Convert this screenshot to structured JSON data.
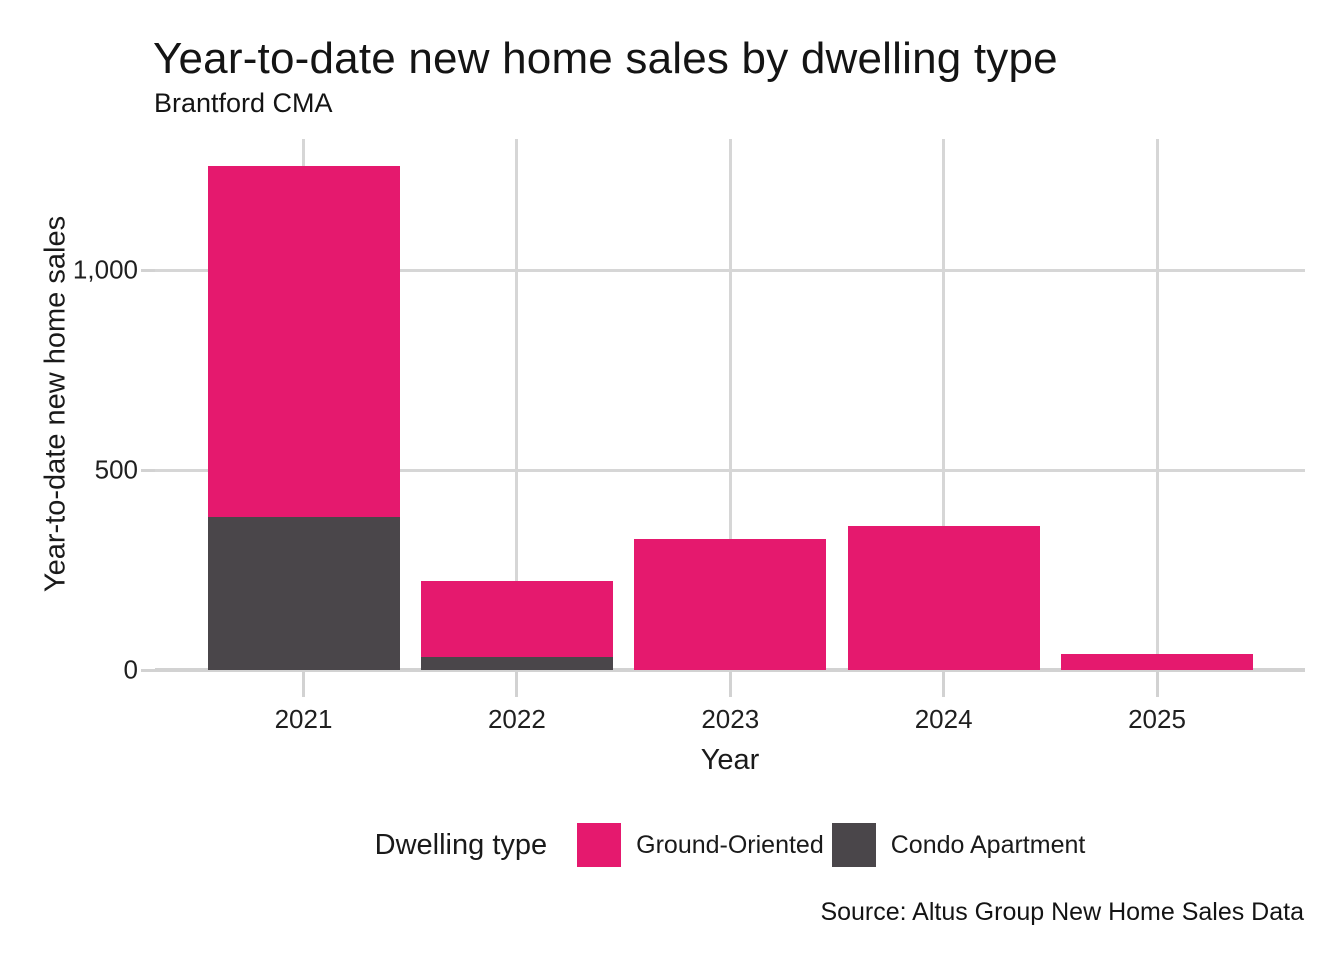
{
  "title": "Year-to-date new home sales by dwelling type",
  "subtitle": "Brantford CMA",
  "source": "Source: Altus Group New Home Sales Data",
  "colors": {
    "ground_oriented": "#E5196E",
    "condo_apartment": "#4A464A",
    "gridline": "#D6D6D6",
    "axis_text": "#1F1F1F",
    "background": "#FFFFFF"
  },
  "chart_data": {
    "type": "bar",
    "stacked": true,
    "title": "Year-to-date new home sales by dwelling type",
    "subtitle": "Brantford CMA",
    "xlabel": "Year",
    "ylabel": "Year-to-date new home sales",
    "categories": [
      "2021",
      "2022",
      "2023",
      "2024",
      "2025"
    ],
    "series": [
      {
        "name": "Condo Apartment",
        "color": "#4A464A",
        "values": [
          383,
          33,
          0,
          0,
          0
        ]
      },
      {
        "name": "Ground-Oriented",
        "color": "#E5196E",
        "values": [
          877,
          190,
          328,
          360,
          39
        ]
      }
    ],
    "totals": [
      1260,
      223,
      328,
      360,
      39
    ],
    "yticks": [
      0,
      500,
      1000
    ],
    "ytick_labels": [
      "0",
      "500",
      "1,000"
    ],
    "ylim": [
      0,
      1328
    ],
    "grid": true,
    "legend_title": "Dwelling type",
    "legend_position": "bottom",
    "legend_order": [
      "Ground-Oriented",
      "Condo Apartment"
    ]
  }
}
